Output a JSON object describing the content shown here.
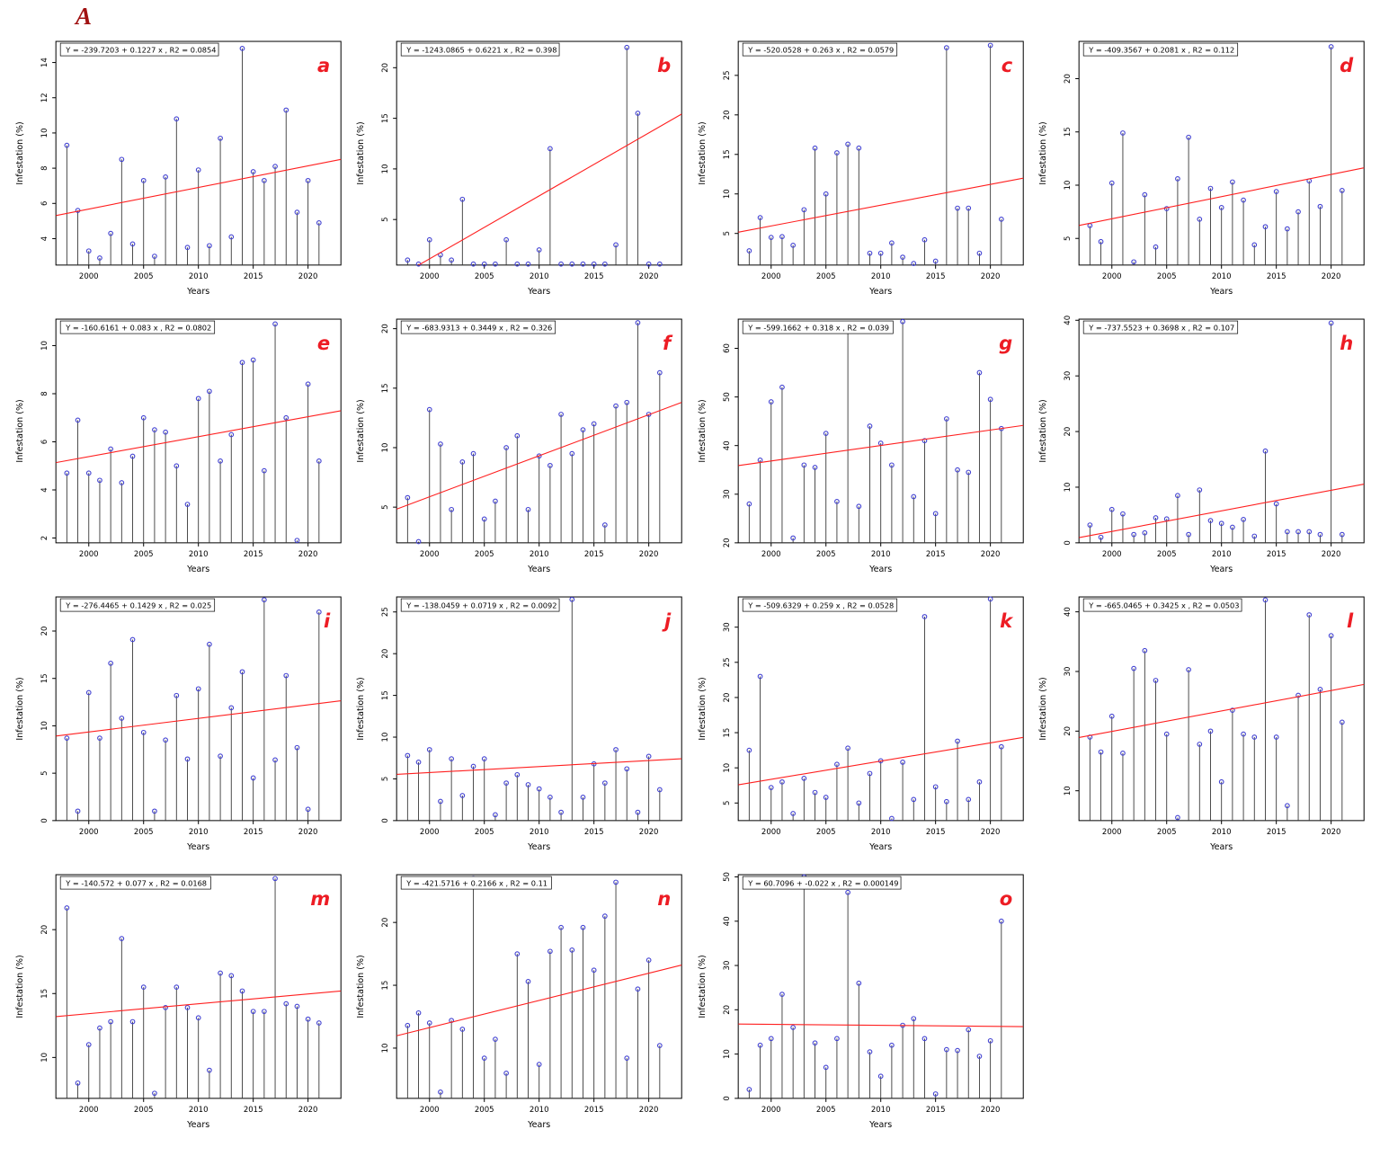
{
  "figure": {
    "label": "A"
  },
  "colors": {
    "marker": "#4343d2",
    "stem": "#3a3a3a",
    "regression": "#ff2020",
    "panel_letter": "#ed1c24",
    "axis": "#000000",
    "equation_box_bg": "#ffffff"
  },
  "chart_data": {
    "type": "stem",
    "xlabel": "Years",
    "ylabel": "Infestation (%)",
    "xlim": [
      1997,
      2023
    ],
    "xticks": [
      2000,
      2005,
      2010,
      2015,
      2020
    ],
    "years": [
      1998,
      1999,
      2000,
      2001,
      2002,
      2003,
      2004,
      2005,
      2006,
      2007,
      2008,
      2009,
      2010,
      2011,
      2012,
      2013,
      2014,
      2015,
      2016,
      2017,
      2018,
      2019,
      2020,
      2021
    ],
    "panels": [
      {
        "label": "a",
        "equation": "Y = -239.7203 + 0.1227 x , R2 = 0.0854",
        "intercept": -239.7203,
        "slope": 0.1227,
        "r2": 0.0854,
        "ylim": [
          2.5,
          15.2
        ],
        "yticks": [
          4,
          6,
          8,
          10,
          12,
          14
        ],
        "y": [
          9.3,
          5.6,
          3.3,
          2.9,
          4.3,
          8.5,
          3.7,
          7.3,
          3.0,
          7.5,
          10.8,
          3.5,
          7.9,
          3.6,
          9.7,
          4.1,
          14.8,
          7.8,
          7.3,
          8.1,
          11.3,
          5.5,
          7.3,
          4.9
        ]
      },
      {
        "label": "b",
        "equation": "Y = -1243.0865 + 0.6221 x , R2 = 0.398",
        "intercept": -1243.0865,
        "slope": 0.6221,
        "r2": 0.398,
        "ylim": [
          0.5,
          22.6
        ],
        "yticks": [
          5,
          10,
          15,
          20
        ],
        "y": [
          1.0,
          0.6,
          3.0,
          1.5,
          1.0,
          7.0,
          0.6,
          0.6,
          0.6,
          3.0,
          0.6,
          0.6,
          2.0,
          12.0,
          0.6,
          0.6,
          0.6,
          0.6,
          0.6,
          2.5,
          22.0,
          15.5,
          0.6,
          0.6
        ]
      },
      {
        "label": "c",
        "equation": "Y = -520.0528 + 0.263 x , R2 = 0.0579",
        "intercept": -520.0528,
        "slope": 0.263,
        "r2": 0.0579,
        "ylim": [
          1,
          29.3
        ],
        "yticks": [
          5,
          10,
          15,
          20,
          25
        ],
        "y": [
          2.8,
          7.0,
          4.5,
          4.6,
          3.5,
          8.0,
          15.8,
          10.0,
          15.2,
          16.3,
          15.8,
          2.5,
          2.5,
          3.8,
          2.0,
          1.2,
          4.2,
          1.5,
          28.5,
          8.2,
          8.2,
          2.5,
          28.8,
          6.8
        ]
      },
      {
        "label": "d",
        "equation": "Y = -409.3567 + 0.2081 x , R2 = 0.112",
        "intercept": -409.3567,
        "slope": 0.2081,
        "r2": 0.112,
        "ylim": [
          2.5,
          23.5
        ],
        "yticks": [
          5,
          10,
          15,
          20
        ],
        "y": [
          6.2,
          4.7,
          10.2,
          14.9,
          2.8,
          9.1,
          4.2,
          7.8,
          10.6,
          14.5,
          6.8,
          9.7,
          7.9,
          10.3,
          8.6,
          4.4,
          6.1,
          9.4,
          5.9,
          7.5,
          10.4,
          8.0,
          23.0,
          9.5
        ]
      },
      {
        "label": "e",
        "equation": "Y = -160.6161 + 0.083 x , R2 = 0.0802",
        "intercept": -160.6161,
        "slope": 0.083,
        "r2": 0.0802,
        "ylim": [
          1.8,
          11.1
        ],
        "yticks": [
          2,
          4,
          6,
          8,
          10
        ],
        "y": [
          4.7,
          6.9,
          4.7,
          4.4,
          5.7,
          4.3,
          5.4,
          7.0,
          6.5,
          6.4,
          5.0,
          3.4,
          7.8,
          8.1,
          5.2,
          6.3,
          9.3,
          9.4,
          4.8,
          10.9,
          7.0,
          1.9,
          8.4,
          5.2
        ]
      },
      {
        "label": "f",
        "equation": "Y = -683.9313 + 0.3449 x , R2 = 0.326",
        "intercept": -683.9313,
        "slope": 0.3449,
        "r2": 0.326,
        "ylim": [
          2,
          20.8
        ],
        "yticks": [
          5,
          10,
          15,
          20
        ],
        "y": [
          5.8,
          2.1,
          13.2,
          10.3,
          4.8,
          8.8,
          9.5,
          4.0,
          5.5,
          10.0,
          11.0,
          4.8,
          9.3,
          8.5,
          12.8,
          9.5,
          11.5,
          12.0,
          3.5,
          13.5,
          13.8,
          20.5,
          12.8,
          16.3
        ]
      },
      {
        "label": "g",
        "equation": "Y = -599.1662 + 0.318 x , R2 = 0.039",
        "intercept": -599.1662,
        "slope": 0.318,
        "r2": 0.039,
        "ylim": [
          20,
          66
        ],
        "yticks": [
          20,
          30,
          40,
          50,
          60
        ],
        "y": [
          28,
          37,
          49,
          52,
          21,
          36,
          35.5,
          42.5,
          28.5,
          64,
          27.5,
          44,
          40.5,
          36,
          65.5,
          29.5,
          41,
          26,
          45.5,
          35,
          34.5,
          55,
          49.5,
          43.5
        ]
      },
      {
        "label": "h",
        "equation": "Y = -737.5523 + 0.3698 x , R2 = 0.107",
        "intercept": -737.5523,
        "slope": 0.3698,
        "r2": 0.107,
        "ylim": [
          0,
          40.2
        ],
        "yticks": [
          0,
          10,
          20,
          30,
          40
        ],
        "y": [
          3.2,
          1.0,
          6.0,
          5.2,
          1.5,
          1.8,
          4.5,
          4.3,
          8.5,
          1.5,
          9.5,
          4.0,
          3.5,
          2.8,
          4.2,
          1.2,
          16.5,
          7.0,
          2.0,
          2.0,
          2.0,
          1.5,
          39.5,
          1.5
        ]
      },
      {
        "label": "i",
        "equation": "Y = -276.4465 + 0.1429 x , R2 = 0.025",
        "intercept": -276.4465,
        "slope": 0.1429,
        "r2": 0.025,
        "ylim": [
          0,
          23.6
        ],
        "yticks": [
          0,
          5,
          10,
          15,
          20
        ],
        "y": [
          8.7,
          1.0,
          13.5,
          8.7,
          16.6,
          10.8,
          19.1,
          9.3,
          1.0,
          8.5,
          13.2,
          6.5,
          13.9,
          18.6,
          6.8,
          11.9,
          15.7,
          4.5,
          23.3,
          6.4,
          15.3,
          7.7,
          1.2,
          22.0
        ]
      },
      {
        "label": "j",
        "equation": "Y = -138.0459 + 0.0719 x , R2 = 0.0092",
        "intercept": -138.0459,
        "slope": 0.0719,
        "r2": 0.0092,
        "ylim": [
          0,
          26.8
        ],
        "yticks": [
          0,
          5,
          10,
          15,
          20,
          25
        ],
        "y": [
          7.8,
          7.0,
          8.5,
          2.3,
          7.4,
          3.0,
          6.5,
          7.4,
          0.7,
          4.5,
          5.5,
          4.3,
          3.8,
          2.8,
          1.0,
          26.5,
          2.8,
          6.8,
          4.5,
          8.5,
          6.2,
          1.0,
          7.7,
          3.7
        ]
      },
      {
        "label": "k",
        "equation": "Y = -509.6329 + 0.259 x , R2 = 0.0528",
        "intercept": -509.6329,
        "slope": 0.259,
        "r2": 0.0528,
        "ylim": [
          2.5,
          34.3
        ],
        "yticks": [
          5,
          10,
          15,
          20,
          25,
          30
        ],
        "y": [
          12.5,
          23.0,
          7.2,
          8.0,
          3.5,
          8.5,
          6.5,
          5.8,
          10.5,
          12.8,
          5.0,
          9.2,
          11.0,
          2.8,
          10.8,
          5.5,
          31.5,
          7.3,
          5.2,
          13.8,
          5.5,
          8.0,
          34.0,
          13.0
        ]
      },
      {
        "label": "l",
        "equation": "Y = -665.0465 + 0.3425 x , R2 = 0.0503",
        "intercept": -665.0465,
        "slope": 0.3425,
        "r2": 0.0503,
        "ylim": [
          5,
          42.5
        ],
        "yticks": [
          10,
          20,
          30,
          40
        ],
        "y": [
          19.0,
          16.5,
          22.5,
          16.3,
          30.5,
          33.5,
          28.5,
          19.5,
          5.5,
          30.3,
          17.8,
          20.0,
          11.5,
          23.5,
          19.5,
          19.0,
          42.0,
          19.0,
          7.5,
          26.0,
          39.5,
          27.0,
          36.0,
          21.5
        ]
      },
      {
        "label": "m",
        "equation": "Y = -140.572 + 0.077 x , R2 = 0.0168",
        "intercept": -140.572,
        "slope": 0.077,
        "r2": 0.0168,
        "ylim": [
          6.8,
          24.3
        ],
        "yticks": [
          10,
          15,
          20
        ],
        "y": [
          21.7,
          8.0,
          11.0,
          12.3,
          12.8,
          19.3,
          12.8,
          15.5,
          7.2,
          13.9,
          15.5,
          13.9,
          13.1,
          9.0,
          16.6,
          16.4,
          15.2,
          13.6,
          13.6,
          24.0,
          14.2,
          14.0,
          13.0,
          12.7
        ]
      },
      {
        "label": "n",
        "equation": "Y = -421.5716 + 0.2166 x , R2 = 0.11",
        "intercept": -421.5716,
        "slope": 0.2166,
        "r2": 0.11,
        "ylim": [
          6,
          23.8
        ],
        "yticks": [
          10,
          15,
          20
        ],
        "y": [
          11.8,
          12.8,
          12.0,
          6.5,
          12.2,
          11.5,
          23.5,
          9.2,
          10.7,
          8.0,
          17.5,
          15.3,
          8.7,
          17.7,
          19.6,
          17.8,
          19.6,
          16.2,
          20.5,
          23.2,
          9.2,
          14.7,
          17.0,
          10.2
        ]
      },
      {
        "label": "o",
        "equation": "Y = 60.7096 + -0.022 x , R2 = 0.000149",
        "intercept": 60.7096,
        "slope": -0.022,
        "r2": 0.000149,
        "ylim": [
          0,
          50.5
        ],
        "yticks": [
          0,
          10,
          20,
          30,
          40,
          50
        ],
        "y": [
          2.0,
          12.0,
          13.5,
          23.5,
          16.0,
          50.0,
          12.5,
          7.0,
          13.5,
          46.5,
          26.0,
          10.5,
          5.0,
          12.0,
          16.5,
          18.0,
          13.5,
          1.0,
          11.0,
          10.8,
          15.5,
          9.5,
          13.0,
          40.0
        ]
      }
    ]
  }
}
